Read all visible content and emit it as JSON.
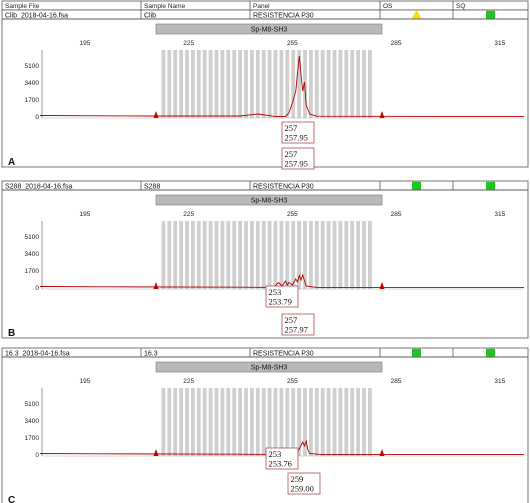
{
  "header_columns": [
    "Sample File",
    "Sample Name",
    "Panel",
    "OS",
    "SQ"
  ],
  "colors": {
    "trace": "#b30000",
    "bin": "#cfcfcf",
    "marker_bar": "#b9b9b9",
    "ok_square": "#22c322",
    "warn_triangle": "#f3df1e",
    "size_marker": "#cc0000",
    "label_box_border": "#b05050"
  },
  "chart_data": [
    {
      "type": "line",
      "panel_label": "A",
      "sample_file": "Clib_2018-04-16.fsa",
      "sample_name": "Clib",
      "panel": "RESISTENCIA P30",
      "os_icon": "warning-triangle-icon",
      "sq_icon": "ok-square-icon",
      "marker": "Sp-M8-SH3",
      "x_ticks": [
        195,
        225,
        255,
        285,
        315
      ],
      "y_ticks": [
        0,
        1700,
        3400,
        5100
      ],
      "xlim": [
        182,
        322
      ],
      "ylim": [
        0,
        6400
      ],
      "series": [
        {
          "x": [
            182,
            200,
            215,
            240,
            245,
            250,
            253,
            254,
            255,
            256,
            256.5,
            257,
            257.5,
            258,
            258.5,
            259,
            260,
            262,
            300,
            322
          ],
          "y": [
            150,
            120,
            100,
            100,
            300,
            60,
            60,
            400,
            1400,
            2600,
            4500,
            6100,
            4200,
            2600,
            3500,
            1200,
            300,
            80,
            60,
            60
          ]
        }
      ],
      "peak_labels": [
        {
          "size": "257",
          "value": "257.95"
        },
        {
          "size": "257",
          "value": "257.95"
        }
      ]
    },
    {
      "type": "line",
      "panel_label": "B",
      "sample_file": "S288_2018-04-16.fsa",
      "sample_name": "S288",
      "panel": "RESISTENCIA P30",
      "os_icon": "ok-square-icon",
      "sq_icon": "ok-square-icon",
      "marker": "Sp-M8-SH3",
      "x_ticks": [
        195,
        225,
        255,
        285,
        315
      ],
      "y_ticks": [
        0,
        1700,
        3400,
        5100
      ],
      "xlim": [
        182,
        322
      ],
      "ylim": [
        0,
        6400
      ],
      "series": [
        {
          "x": [
            182,
            200,
            240,
            249,
            250,
            251,
            252,
            253,
            253.5,
            254,
            255,
            256,
            256.5,
            257,
            257.5,
            258,
            259,
            262,
            300,
            322
          ],
          "y": [
            150,
            120,
            80,
            60,
            200,
            550,
            200,
            700,
            300,
            550,
            300,
            900,
            600,
            1250,
            800,
            1300,
            200,
            60,
            60,
            60
          ]
        }
      ],
      "peak_labels": [
        {
          "size": "253",
          "value": "253.79"
        },
        {
          "size": "257",
          "value": "257.97"
        }
      ]
    },
    {
      "type": "line",
      "panel_label": "C",
      "sample_file": "16.3_2018-04-16.fsa",
      "sample_name": "16.3",
      "panel": "RESISTENCIA P30",
      "os_icon": "ok-square-icon",
      "sq_icon": "ok-square-icon",
      "marker": "Sp-M8-SH3",
      "x_ticks": [
        195,
        225,
        255,
        285,
        315
      ],
      "y_ticks": [
        0,
        1700,
        3400,
        5100
      ],
      "xlim": [
        182,
        322
      ],
      "ylim": [
        0,
        6400
      ],
      "series": [
        {
          "x": [
            182,
            200,
            240,
            249,
            250,
            251,
            252,
            253,
            253.5,
            254,
            255,
            256,
            257,
            258,
            258.5,
            259,
            259.5,
            260,
            263,
            300,
            322
          ],
          "y": [
            150,
            120,
            80,
            60,
            200,
            600,
            250,
            700,
            350,
            500,
            200,
            100,
            600,
            1300,
            900,
            1400,
            500,
            150,
            60,
            60,
            60
          ]
        }
      ],
      "peak_labels": [
        {
          "size": "253",
          "value": "253.76"
        },
        {
          "size": "259",
          "value": "259.00"
        }
      ]
    }
  ]
}
